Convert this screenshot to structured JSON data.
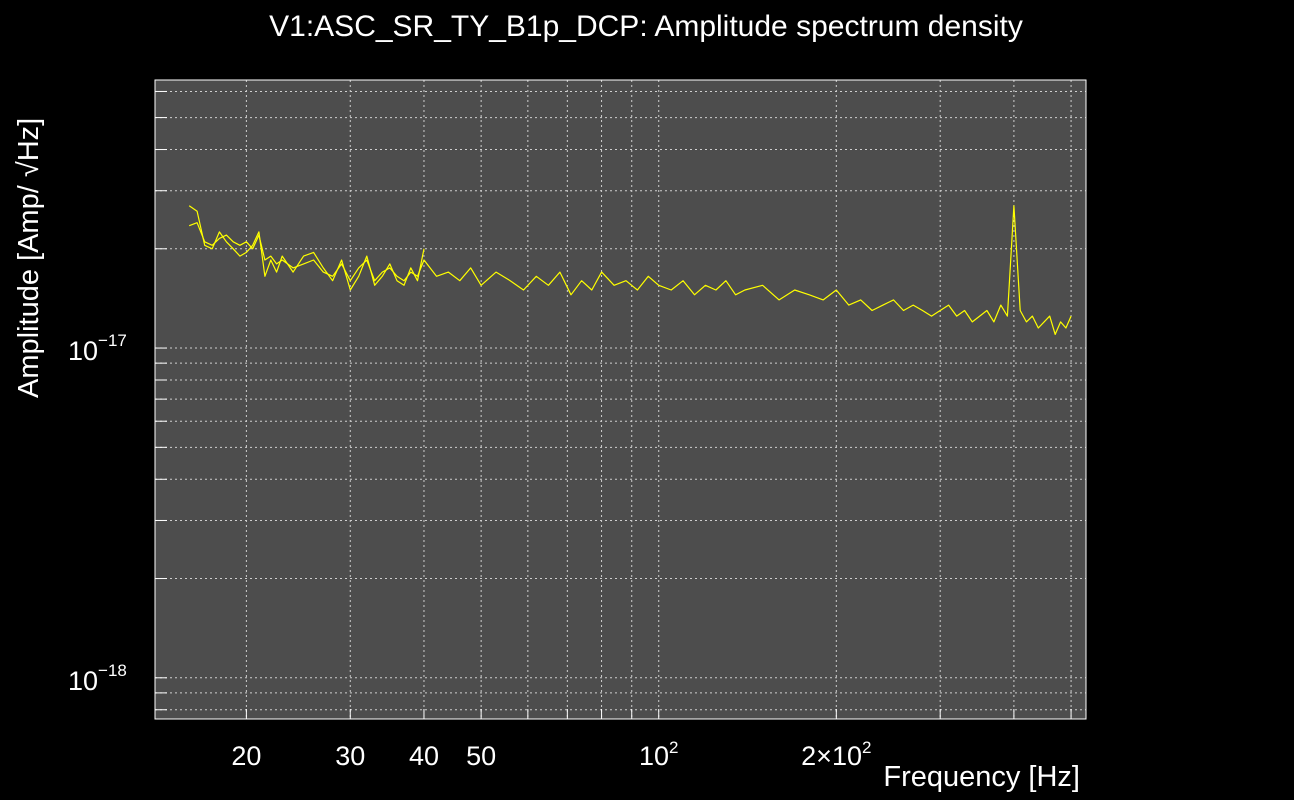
{
  "chart_data": {
    "type": "line",
    "title": "V1:ASC_SR_TY_B1p_DCP: Amplitude spectrum density",
    "xlabel": "Frequency [Hz]",
    "ylabel": "Amplitude [Amp/ √Hz]",
    "x_scale": "log",
    "y_scale": "log",
    "xlim": [
      14,
      530
    ],
    "ylim": [
      7.5e-19,
      6.5e-17
    ],
    "grid": true,
    "x_ticks": [
      {
        "value": 20,
        "label": "20"
      },
      {
        "value": 30,
        "label": "30"
      },
      {
        "value": 40,
        "label": "40"
      },
      {
        "value": 50,
        "label": "50"
      },
      {
        "value": 100,
        "label": "10",
        "sup": "2"
      },
      {
        "value": 200,
        "label": "2×10",
        "sup": "2"
      }
    ],
    "y_ticks": [
      {
        "value": 1e-17,
        "label": "10",
        "sup": "−17"
      },
      {
        "value": 1e-18,
        "label": "10",
        "sup": "−18"
      }
    ],
    "colors": {
      "background": "#000000",
      "plot_area": "#4d4d4d",
      "series": "#ffff00",
      "grid": "#cfcfcf",
      "text": "#ffffff"
    },
    "series": [
      {
        "x": [
          16,
          16.5,
          17,
          17.5,
          18,
          18.5,
          19,
          19.5,
          20,
          20.5,
          21,
          21.5,
          22,
          22.5,
          23,
          24,
          25,
          26,
          27,
          28,
          29,
          30,
          31,
          32,
          33,
          34,
          35,
          36,
          37,
          38,
          39,
          40,
          42,
          44,
          46,
          48,
          50,
          53,
          56,
          59,
          62,
          65,
          68,
          71,
          74,
          77,
          80,
          84,
          88,
          92,
          96,
          100,
          105,
          110,
          115,
          120,
          125,
          130,
          135,
          140,
          150,
          160,
          170,
          180,
          190,
          200,
          210,
          220,
          230,
          240,
          250,
          260,
          270,
          280,
          290,
          300,
          310,
          320,
          330,
          340,
          350,
          360,
          370,
          380,
          390,
          400,
          410,
          420,
          430,
          440,
          450,
          460,
          470,
          480,
          490,
          500
        ],
        "values": [
          2.35e-17,
          2.4e-17,
          2.1e-17,
          2.05e-17,
          2.15e-17,
          2.2e-17,
          2.1e-17,
          2.05e-17,
          2.1e-17,
          2e-17,
          2.2e-17,
          1.85e-17,
          1.9e-17,
          1.8e-17,
          1.85e-17,
          1.75e-17,
          1.8e-17,
          1.85e-17,
          1.7e-17,
          1.65e-17,
          1.8e-17,
          1.6e-17,
          1.75e-17,
          1.85e-17,
          1.6e-17,
          1.7e-17,
          1.75e-17,
          1.65e-17,
          1.6e-17,
          1.7e-17,
          1.65e-17,
          1.85e-17,
          1.65e-17,
          1.7e-17,
          1.6e-17,
          1.75e-17,
          1.55e-17,
          1.7e-17,
          1.6e-17,
          1.5e-17,
          1.65e-17,
          1.55e-17,
          1.7e-17,
          1.45e-17,
          1.6e-17,
          1.5e-17,
          1.7e-17,
          1.55e-17,
          1.6e-17,
          1.5e-17,
          1.65e-17,
          1.55e-17,
          1.5e-17,
          1.6e-17,
          1.45e-17,
          1.55e-17,
          1.5e-17,
          1.6e-17,
          1.45e-17,
          1.5e-17,
          1.55e-17,
          1.4e-17,
          1.5e-17,
          1.45e-17,
          1.4e-17,
          1.5e-17,
          1.35e-17,
          1.4e-17,
          1.3e-17,
          1.35e-17,
          1.4e-17,
          1.3e-17,
          1.35e-17,
          1.3e-17,
          1.25e-17,
          1.3e-17,
          1.35e-17,
          1.25e-17,
          1.3e-17,
          1.2e-17,
          1.25e-17,
          1.3e-17,
          1.2e-17,
          1.35e-17,
          1.25e-17,
          2.7e-17,
          1.3e-17,
          1.2e-17,
          1.25e-17,
          1.15e-17,
          1.2e-17,
          1.25e-17,
          1.1e-17,
          1.2e-17,
          1.15e-17,
          1.25e-17
        ]
      },
      {
        "x": [
          16,
          16.5,
          17,
          17.5,
          18,
          18.5,
          19,
          19.5,
          20,
          20.5,
          21,
          21.5,
          22,
          22.5,
          23,
          24,
          25,
          26,
          27,
          28,
          29,
          30,
          31,
          32,
          33,
          34,
          35,
          36,
          37,
          38,
          39,
          40
        ],
        "values": [
          2.7e-17,
          2.6e-17,
          2.05e-17,
          2e-17,
          2.25e-17,
          2.1e-17,
          2e-17,
          1.9e-17,
          1.95e-17,
          2.05e-17,
          2.25e-17,
          1.65e-17,
          1.85e-17,
          1.7e-17,
          1.9e-17,
          1.7e-17,
          1.9e-17,
          1.95e-17,
          1.75e-17,
          1.6e-17,
          1.85e-17,
          1.5e-17,
          1.65e-17,
          1.9e-17,
          1.55e-17,
          1.65e-17,
          1.8e-17,
          1.6e-17,
          1.55e-17,
          1.75e-17,
          1.6e-17,
          2e-17
        ]
      }
    ]
  }
}
